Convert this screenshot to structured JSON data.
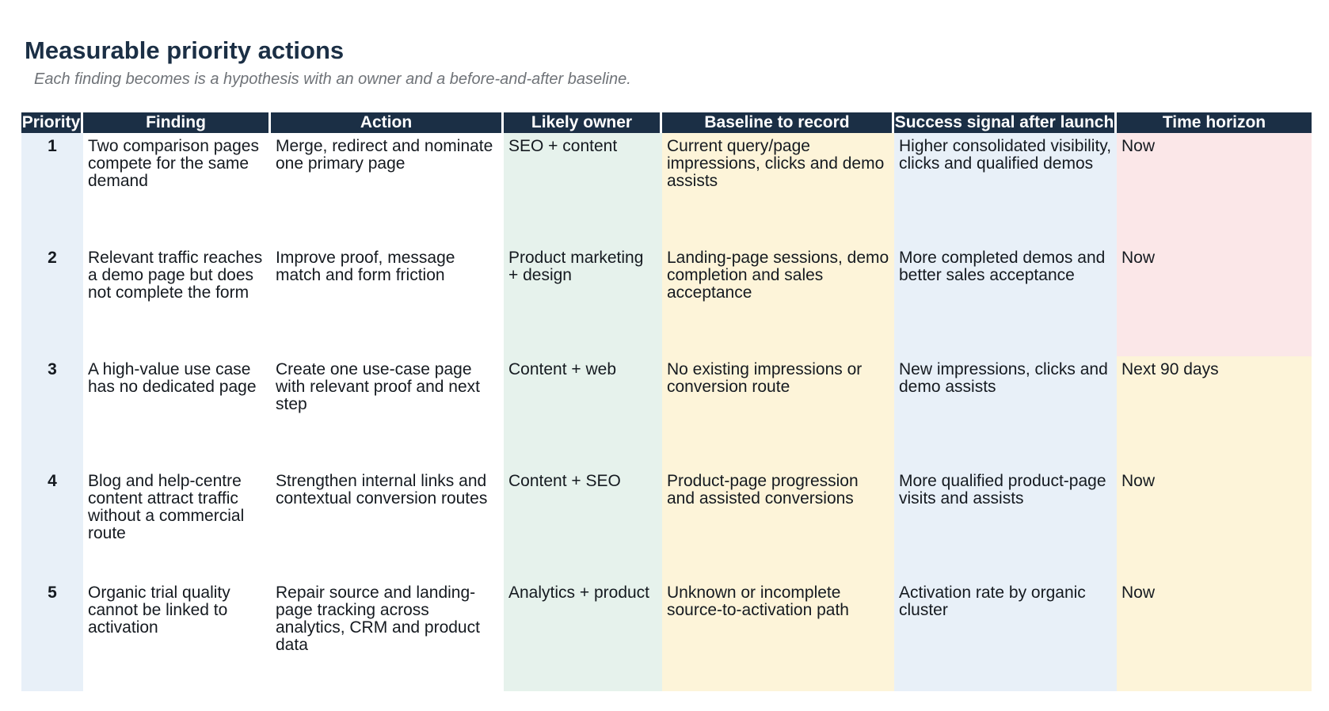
{
  "header": {
    "title": "Measurable priority actions",
    "subtitle": "Each finding becomes is a hypothesis with an owner and a before-and-after baseline."
  },
  "table": {
    "columns": [
      "Priority",
      "Finding",
      "Action",
      "Likely owner",
      "Baseline to record",
      "Success signal after launch",
      "Time horizon"
    ],
    "rows": [
      {
        "priority": "1",
        "finding": "Two comparison pages compete for the same demand",
        "action": "Merge, redirect and nominate one primary page",
        "owner": "SEO + content",
        "baseline": "Current query/page impressions, clicks and demo assists",
        "signal": "Higher consolidated visibility, clicks and qualified demos",
        "horizon": "Now"
      },
      {
        "priority": "2",
        "finding": "Relevant traffic reaches a demo page but does not complete the form",
        "action": "Improve proof, message match and form friction",
        "owner": "Product marketing + design",
        "baseline": "Landing-page sessions, demo completion and sales acceptance",
        "signal": "More completed demos and better sales acceptance",
        "horizon": "Now"
      },
      {
        "priority": "3",
        "finding": "A high-value use case has no dedicated page",
        "action": "Create one use-case page with relevant proof and next step",
        "owner": "Content + web",
        "baseline": "No existing impressions or conversion route",
        "signal": "New impressions, clicks and demo assists",
        "horizon": "Next 90 days"
      },
      {
        "priority": "4",
        "finding": "Blog and help-centre content attract traffic without a commercial route",
        "action": "Strengthen internal links and contextual conversion routes",
        "owner": "Content + SEO",
        "baseline": "Product-page progression and assisted conversions",
        "signal": "More qualified product-page visits and assists",
        "horizon": "Now"
      },
      {
        "priority": "5",
        "finding": "Organic trial quality cannot be linked to activation",
        "action": "Repair source and landing-page tracking across analytics, CRM and product data",
        "owner": "Analytics + product",
        "baseline": "Unknown or incomplete source-to-activation path",
        "signal": "Activation rate by organic cluster",
        "horizon": "Now"
      }
    ]
  },
  "colors": {
    "header_bg": "#1b2f45",
    "priority_bg": "#e8f0f8",
    "owner_bg": "#e6f2ec",
    "baseline_bg": "#fdf4d9",
    "signal_bg": "#e8f0f8",
    "horizon_now_bg": "#fbe7e8",
    "horizon_later_bg": "#fdf4d9"
  }
}
